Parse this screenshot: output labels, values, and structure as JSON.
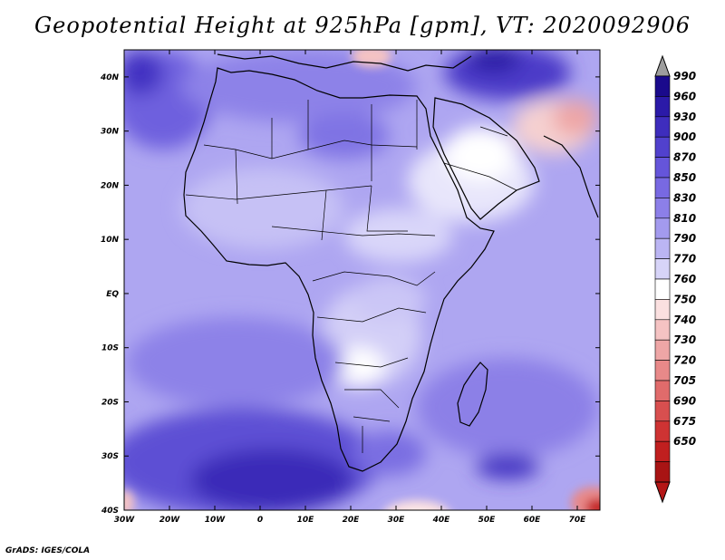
{
  "title": "Geopotential Height at 925hPa [gpm], VT: 2020092906",
  "credit": "GrADS: IGES/COLA",
  "map": {
    "variable": "Geopotential Height",
    "level": "925hPa",
    "units": "gpm",
    "valid_time": "2020092906",
    "lon_range": [
      -30,
      75
    ],
    "lat_range": [
      -40,
      45
    ],
    "lon_ticks": [
      "30W",
      "20W",
      "10W",
      "0",
      "10E",
      "20E",
      "30E",
      "40E",
      "50E",
      "60E",
      "70E"
    ],
    "lat_ticks": [
      "40N",
      "30N",
      "20N",
      "10N",
      "EQ",
      "10S",
      "20S",
      "30S",
      "40S"
    ]
  },
  "colorbar": {
    "levels": [
      "990",
      "960",
      "930",
      "900",
      "870",
      "850",
      "830",
      "810",
      "790",
      "770",
      "760",
      "750",
      "740",
      "730",
      "720",
      "705",
      "690",
      "675",
      "650"
    ],
    "colors": [
      "#1a0a8c",
      "#2b1aa8",
      "#3e2dbd",
      "#5141cd",
      "#6555da",
      "#7869e2",
      "#8c7fe8",
      "#a39aee",
      "#bbb5f3",
      "#d7d4f8",
      "#ffffff",
      "#fbe0e0",
      "#f5c3c3",
      "#eea6a6",
      "#e88989",
      "#e06b6b",
      "#d84f4f",
      "#ce3333",
      "#c01f1f",
      "#a81414"
    ],
    "over_color": "#9e9e9e",
    "under_color": "#b41616"
  }
}
